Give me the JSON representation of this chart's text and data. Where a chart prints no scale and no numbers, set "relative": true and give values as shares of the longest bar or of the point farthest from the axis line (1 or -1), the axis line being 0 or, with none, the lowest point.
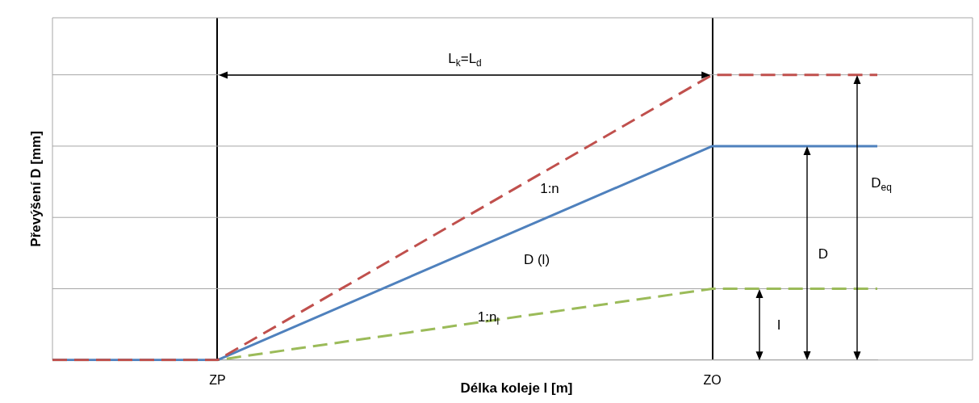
{
  "chart_data": {
    "type": "line",
    "relative": true,
    "xlabel": "Délka koleje l [m]",
    "ylabel": "Převýšení D [mm]",
    "categories": [
      null,
      "ZP",
      null,
      null,
      "ZO",
      null
    ],
    "series": [
      {
        "color": "#c0504d",
        "line_style": "dashed",
        "values": [
          0,
          0,
          null,
          null,
          1,
          1
        ]
      },
      {
        "color": "#4f81bd",
        "line_style": "solid",
        "values": [
          0,
          0,
          null,
          null,
          0.75,
          0.75
        ]
      },
      {
        "color": "#9bbb59",
        "line_style": "dashed",
        "values": [
          0,
          0,
          null,
          null,
          0.25,
          0.25
        ]
      }
    ],
    "ref_lines": [
      {
        "axis": "y",
        "value": 0.25,
        "color": "#a6a6a6"
      },
      {
        "axis": "y",
        "value": 0.5,
        "color": "#a6a6a6"
      },
      {
        "axis": "y",
        "value": 0.75,
        "color": "#a6a6a6"
      },
      {
        "axis": "y",
        "value": 1,
        "color": "#a6a6a6"
      }
    ],
    "annotations": [
      "L$_{k}$=L$_{d}$",
      "1:n",
      "D (l)",
      "1:n$_{l}$",
      "D",
      "D$_{eq}$",
      "I"
    ],
    "marker": "none",
    "legend": false,
    "grid": "x",
    "tick_labels": "x"
  }
}
